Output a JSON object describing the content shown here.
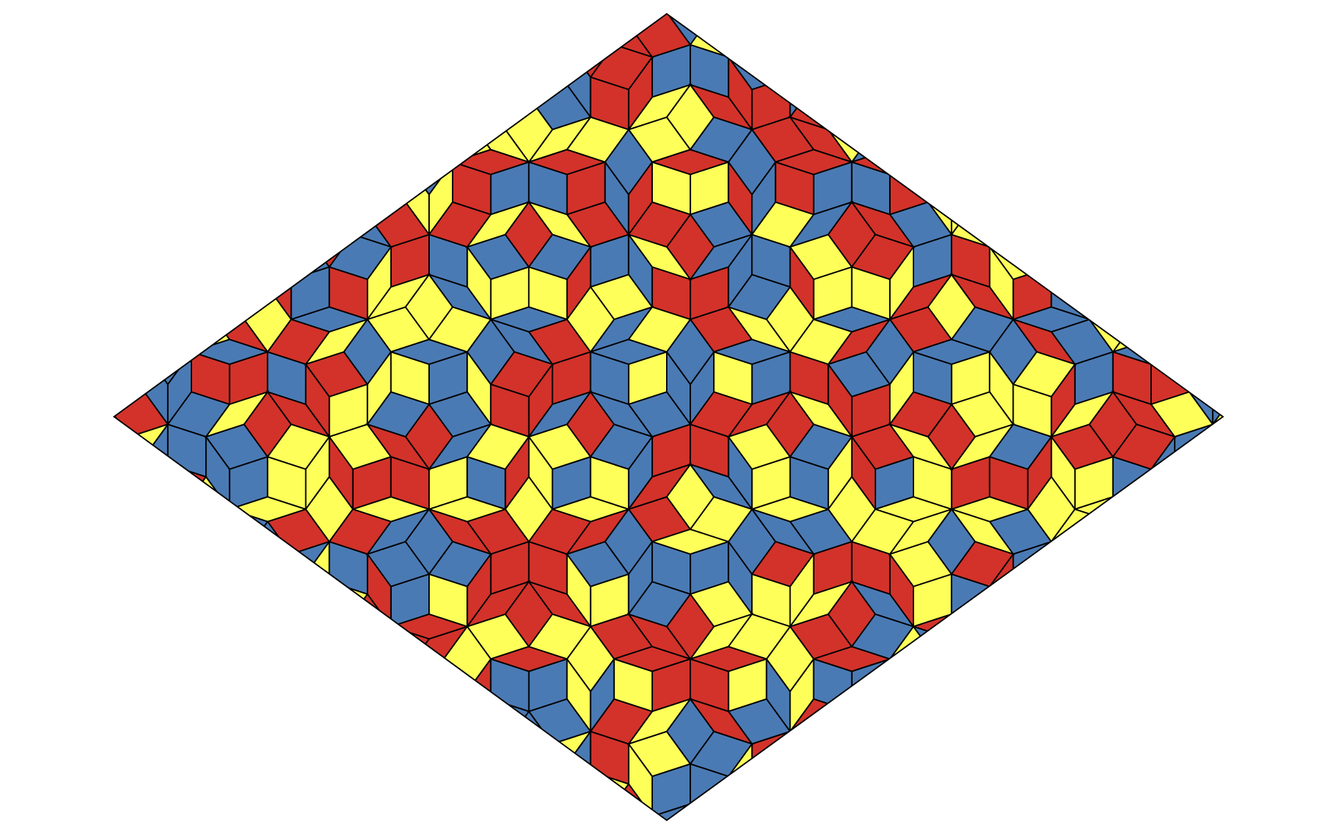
{
  "figure": {
    "description_kind": "rhombus-tiling",
    "palette": {
      "red": "#d2322a",
      "blue": "#4a7ab4",
      "yellow": "#ffff5a",
      "edge": "#000000",
      "background": "#ffffff"
    },
    "tile_colors": [
      "red",
      "blue",
      "yellow"
    ]
  }
}
